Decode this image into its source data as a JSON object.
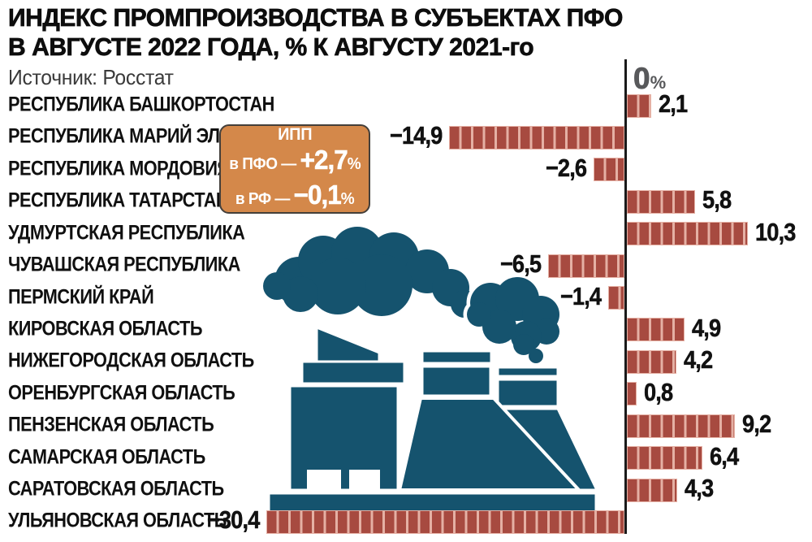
{
  "title": {
    "line1": "ИНДЕКС ПРОМПРОИЗВОДСТВА В СУБЪЕКТАХ ПФО",
    "line2": "В АВГУСТЕ 2022 ГОДА, % К АВГУСТУ 2021-го"
  },
  "source": "Источник: Росстат",
  "axis": {
    "zero_label": "0",
    "unit": "%"
  },
  "ipp_box": {
    "title": "ИПП",
    "rows": [
      {
        "label": "в ПФО —",
        "value": "+2,7",
        "unit": "%"
      },
      {
        "label": "в РФ —",
        "value": "−0,1",
        "unit": "%"
      }
    ]
  },
  "colors": {
    "bar_dark": "#a74a40",
    "bar_light": "#e5b0a4",
    "factory_teal": "#15536e",
    "box_orange": "#d4884a",
    "axis_gray": "#58595b",
    "text_black": "#111111"
  },
  "chart_data": {
    "type": "bar",
    "orientation": "horizontal",
    "title": "ИНДЕКС ПРОМПРОИЗВОДСТВА В СУБЪЕКТАХ ПФО В АВГУСТЕ 2022 ГОДА, % К АВГУСТУ 2021-го",
    "source": "Росстат",
    "unit": "%",
    "baseline": 0,
    "xlim": [
      -31,
      11
    ],
    "legend": "none",
    "grid": false,
    "categories": [
      "РЕСПУБЛИКА БАШКОРТОСТАН",
      "РЕСПУБЛИКА МАРИЙ ЭЛ",
      "РЕСПУБЛИКА МОРДОВИЯ",
      "РЕСПУБЛИКА ТАТАРСТАН",
      "УДМУРТСКАЯ РЕСПУБЛИКА",
      "ЧУВАШСКАЯ РЕСПУБЛИКА",
      "ПЕРМСКИЙ КРАЙ",
      "КИРОВСКАЯ ОБЛАСТЬ",
      "НИЖЕГОРОДСКАЯ ОБЛАСТЬ",
      "ОРЕНБУРГСКАЯ ОБЛАСТЬ",
      "ПЕНЗЕНСКАЯ ОБЛАСТЬ",
      "САМАРСКАЯ ОБЛАСТЬ",
      "САРАТОВСКАЯ ОБЛАСТЬ",
      "УЛЬЯНОВСКАЯ ОБЛАСТЬ"
    ],
    "values": [
      2.1,
      -14.9,
      -2.6,
      5.8,
      10.3,
      -6.5,
      -1.4,
      4.9,
      4.2,
      0.8,
      9.2,
      6.4,
      4.3,
      -30.4
    ],
    "labels": [
      "2,1",
      "−14,9",
      "−2,6",
      "5,8",
      "10,3",
      "−6,5",
      "−1,4",
      "4,9",
      "4,2",
      "0,8",
      "9,2",
      "6,4",
      "4,3",
      "−30,4"
    ],
    "reference_values": [
      {
        "name": "ИПП в ПФО",
        "value": 2.7,
        "label": "+2,7%"
      },
      {
        "name": "ИПП в РФ",
        "value": -0.1,
        "label": "−0,1%"
      }
    ]
  }
}
